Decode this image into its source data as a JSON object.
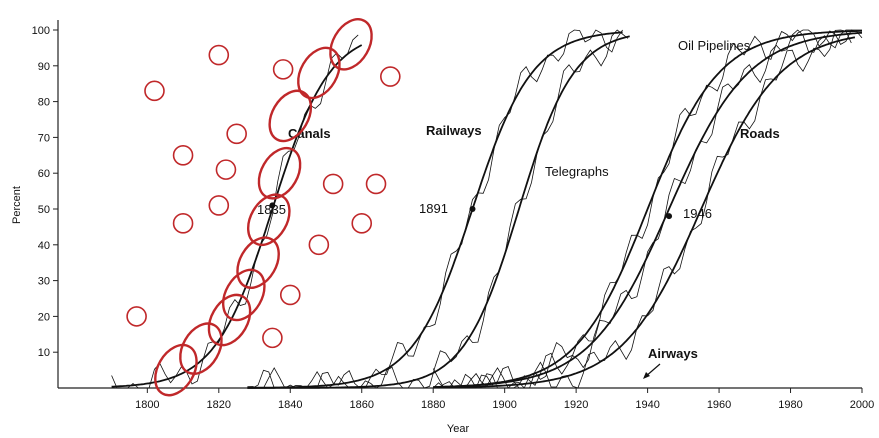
{
  "chart_data": {
    "type": "line",
    "title": "",
    "xlabel": "Year",
    "ylabel": "Percent",
    "xlim": [
      1775,
      2000
    ],
    "ylim": [
      0,
      100
    ],
    "xticks": [
      1800,
      1820,
      1840,
      1860,
      1880,
      1900,
      1920,
      1940,
      1960,
      1980,
      2000
    ],
    "yticks": [
      10,
      20,
      30,
      40,
      50,
      60,
      70,
      80,
      90,
      100
    ],
    "grid": false,
    "legend": "none",
    "series": [
      {
        "name": "Canals",
        "midpoint": 1835,
        "growth": 0.125,
        "x_start": 1790,
        "x_end": 1860
      },
      {
        "name": "Railways",
        "midpoint": 1891,
        "growth": 0.12,
        "x_start": 1828,
        "x_end": 1933
      },
      {
        "name": "Telegraphs",
        "midpoint": 1904,
        "growth": 0.13,
        "x_start": 1828,
        "x_end": 1935
      },
      {
        "name": "Oil Pipelines",
        "midpoint": 1940,
        "growth": 0.1,
        "x_start": 1880,
        "x_end": 2000
      },
      {
        "name": "Roads",
        "midpoint": 1946,
        "growth": 0.09,
        "x_start": 1880,
        "x_end": 2000
      },
      {
        "name": "Airways",
        "midpoint": 1955,
        "growth": 0.09,
        "x_start": 1880,
        "x_end": 1998
      }
    ],
    "marked_points": [
      {
        "label": "1835",
        "x": 1835,
        "y": 51
      },
      {
        "label": "1891",
        "x": 1891,
        "y": 50
      },
      {
        "label": "1946",
        "x": 1946,
        "y": 48
      }
    ],
    "annotations": [
      "Canals",
      "Railways",
      "Telegraphs",
      "Oil Pipelines",
      "Roads",
      "Airways"
    ],
    "overlay_ellipses_on_canals_curve": [
      {
        "x": 1808,
        "y": 5
      },
      {
        "x": 1815,
        "y": 11
      },
      {
        "x": 1823,
        "y": 19
      },
      {
        "x": 1827,
        "y": 26
      },
      {
        "x": 1831,
        "y": 35
      },
      {
        "x": 1834,
        "y": 47
      },
      {
        "x": 1837,
        "y": 60
      },
      {
        "x": 1840,
        "y": 76
      },
      {
        "x": 1848,
        "y": 88
      },
      {
        "x": 1857,
        "y": 96
      }
    ],
    "overlay_circles_scattered": [
      {
        "x": 1797,
        "y": 20
      },
      {
        "x": 1802,
        "y": 83
      },
      {
        "x": 1810,
        "y": 65
      },
      {
        "x": 1810,
        "y": 46
      },
      {
        "x": 1820,
        "y": 93
      },
      {
        "x": 1820,
        "y": 51
      },
      {
        "x": 1822,
        "y": 61
      },
      {
        "x": 1825,
        "y": 71
      },
      {
        "x": 1835,
        "y": 14
      },
      {
        "x": 1838,
        "y": 89
      },
      {
        "x": 1840,
        "y": 26
      },
      {
        "x": 1848,
        "y": 40
      },
      {
        "x": 1852,
        "y": 57
      },
      {
        "x": 1860,
        "y": 46
      },
      {
        "x": 1864,
        "y": 57
      },
      {
        "x": 1868,
        "y": 87
      }
    ],
    "overlay_color": "#c0282a",
    "line_color": "#111111"
  },
  "labels": {
    "ylabel": "Percent",
    "xlabel": "Year",
    "canals": "Canals",
    "railways": "Railways",
    "telegraphs": "Telegraphs",
    "oil_pipelines": "Oil Pipelines",
    "roads": "Roads",
    "airways": "Airways",
    "m1835": "1835",
    "m1891": "1891",
    "m1946": "1946"
  }
}
